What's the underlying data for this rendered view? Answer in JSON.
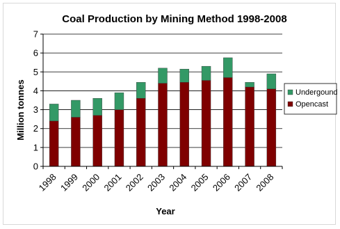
{
  "chart_data": {
    "type": "bar",
    "stacked": true,
    "title": "Coal Production by Mining Method 1998-2008",
    "xlabel": "Year",
    "ylabel": "Million tonnes",
    "categories": [
      "1998",
      "1999",
      "2000",
      "2001",
      "2002",
      "2003",
      "2004",
      "2005",
      "2006",
      "2007",
      "2008"
    ],
    "ylim": [
      0,
      7
    ],
    "yticks": [
      0,
      1,
      2,
      3,
      4,
      5,
      6,
      7
    ],
    "grid": true,
    "legend_position": "right",
    "series": [
      {
        "name": "Opencast",
        "color": "#7f0000",
        "values": [
          2.4,
          2.6,
          2.7,
          3.0,
          3.6,
          4.4,
          4.45,
          4.55,
          4.7,
          4.2,
          4.1
        ]
      },
      {
        "name": "Undergound",
        "color": "#339966",
        "values": [
          0.9,
          0.9,
          0.9,
          0.9,
          0.85,
          0.8,
          0.7,
          0.75,
          1.05,
          0.25,
          0.8
        ]
      }
    ],
    "legend_order": [
      "Undergound",
      "Opencast"
    ]
  }
}
